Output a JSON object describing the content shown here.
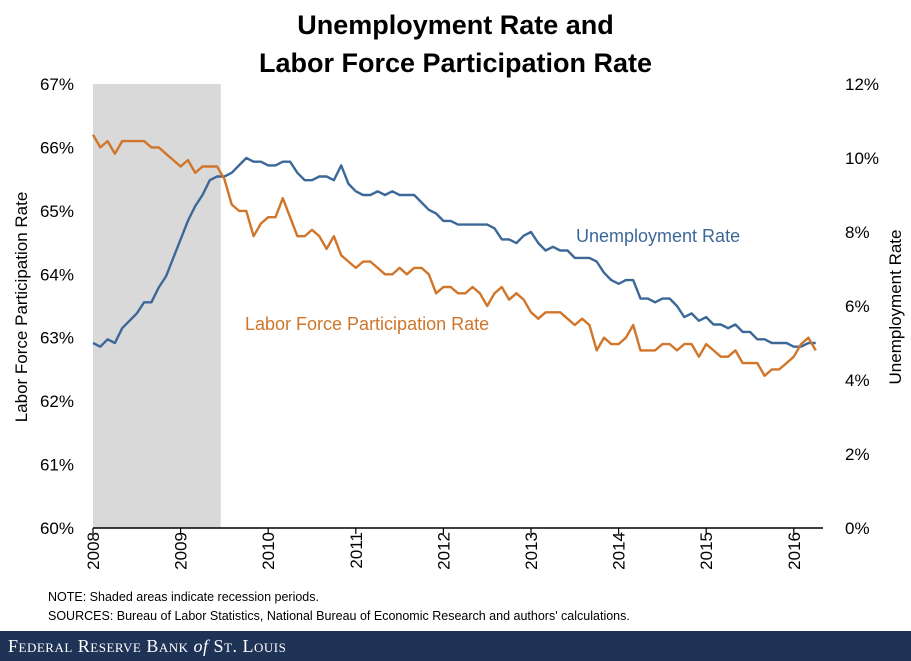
{
  "title": {
    "line1": "Unemployment Rate and",
    "line2": "Labor Force Participation Rate"
  },
  "chart_data": {
    "type": "line",
    "title": "Unemployment Rate and Labor Force Participation Rate",
    "xlabel": "",
    "ylabel_left": "Labor Force Participation Rate",
    "ylabel_right": "Unemployment Rate",
    "xlim": [
      2008.0,
      2016.3333
    ],
    "ylim_left": [
      60,
      67
    ],
    "ylim_right": [
      0,
      12
    ],
    "x_ticks": [
      "2008",
      "2009",
      "2010",
      "2011",
      "2012",
      "2013",
      "2014",
      "2015",
      "2016"
    ],
    "y_ticks_left": [
      "60%",
      "61%",
      "62%",
      "63%",
      "64%",
      "65%",
      "66%",
      "67%"
    ],
    "y_ticks_right": [
      "0%",
      "2%",
      "4%",
      "6%",
      "8%",
      "10%",
      "12%"
    ],
    "recession": {
      "start": 2008.0,
      "end": 2009.4583,
      "label": "Shaded areas indicate recession periods."
    },
    "x_start": 2008.0,
    "x_step": 0.083333,
    "series": [
      {
        "name": "Unemployment Rate",
        "axis": "right",
        "color": "#3c6897",
        "annotation": "Unemployment Rate",
        "values": [
          5.0,
          4.9,
          5.1,
          5.0,
          5.4,
          5.6,
          5.8,
          6.1,
          6.1,
          6.5,
          6.8,
          7.3,
          7.8,
          8.3,
          8.7,
          9.0,
          9.4,
          9.5,
          9.5,
          9.6,
          9.8,
          10.0,
          9.9,
          9.9,
          9.8,
          9.8,
          9.9,
          9.9,
          9.6,
          9.4,
          9.4,
          9.5,
          9.5,
          9.4,
          9.8,
          9.3,
          9.1,
          9.0,
          9.0,
          9.1,
          9.0,
          9.1,
          9.0,
          9.0,
          9.0,
          8.8,
          8.6,
          8.5,
          8.3,
          8.3,
          8.2,
          8.2,
          8.2,
          8.2,
          8.2,
          8.1,
          7.8,
          7.8,
          7.7,
          7.9,
          8.0,
          7.7,
          7.5,
          7.6,
          7.5,
          7.5,
          7.3,
          7.3,
          7.3,
          7.2,
          6.9,
          6.7,
          6.6,
          6.7,
          6.7,
          6.2,
          6.2,
          6.1,
          6.2,
          6.2,
          6.0,
          5.7,
          5.8,
          5.6,
          5.7,
          5.5,
          5.5,
          5.4,
          5.5,
          5.3,
          5.3,
          5.1,
          5.1,
          5.0,
          5.0,
          5.0,
          4.9,
          4.9,
          5.0,
          5.0
        ]
      },
      {
        "name": "Labor Force Participation Rate",
        "axis": "left",
        "color": "#d07529",
        "annotation": "Labor Force Participation Rate",
        "values": [
          66.2,
          66.0,
          66.1,
          65.9,
          66.1,
          66.1,
          66.1,
          66.1,
          66.0,
          66.0,
          65.9,
          65.8,
          65.7,
          65.8,
          65.6,
          65.7,
          65.7,
          65.7,
          65.5,
          65.1,
          65.0,
          65.0,
          64.6,
          64.8,
          64.9,
          64.9,
          65.2,
          64.9,
          64.6,
          64.6,
          64.7,
          64.6,
          64.4,
          64.6,
          64.3,
          64.2,
          64.1,
          64.2,
          64.2,
          64.1,
          64.0,
          64.0,
          64.1,
          64.0,
          64.1,
          64.1,
          64.0,
          63.7,
          63.8,
          63.8,
          63.7,
          63.7,
          63.8,
          63.7,
          63.5,
          63.7,
          63.8,
          63.6,
          63.7,
          63.6,
          63.4,
          63.3,
          63.4,
          63.4,
          63.4,
          63.3,
          63.2,
          63.3,
          63.2,
          62.8,
          63.0,
          62.9,
          62.9,
          63.0,
          63.2,
          62.8,
          62.8,
          62.8,
          62.9,
          62.9,
          62.8,
          62.9,
          62.9,
          62.7,
          62.9,
          62.8,
          62.7,
          62.7,
          62.8,
          62.6,
          62.6,
          62.6,
          62.4,
          62.5,
          62.5,
          62.6,
          62.7,
          62.9,
          63.0,
          62.8
        ]
      }
    ]
  },
  "notes": {
    "note": "NOTE: Shaded areas indicate recession periods.",
    "sources": "SOURCES: Bureau of Labor Statistics, National Bureau of Economic Research and authors' calculations."
  },
  "footer": {
    "name_prefix": "Federal Reserve Bank",
    "name_of": "of",
    "name_suffix": "St. Louis",
    "color": "#1f3356"
  }
}
